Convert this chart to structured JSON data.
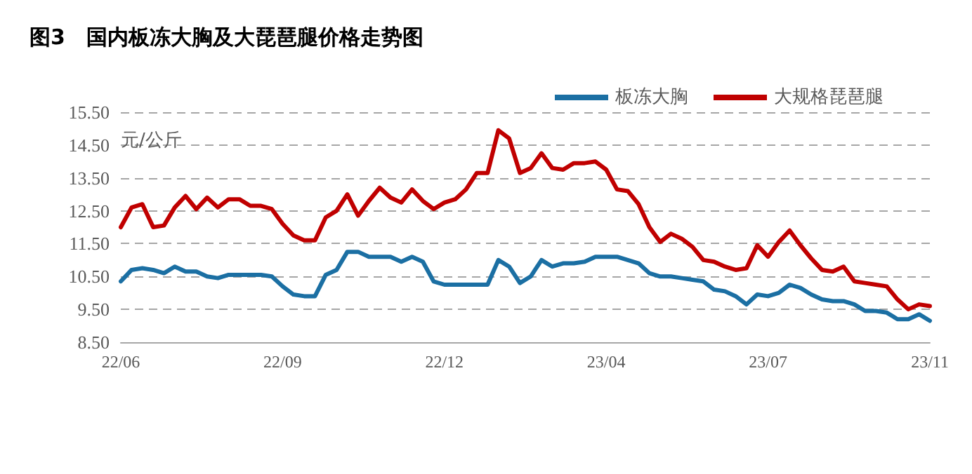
{
  "chart_data": {
    "type": "line",
    "title": "图3　国内板冻大胸及大琵琶腿价格走势图",
    "ylabel": "元/公斤",
    "categories": [
      "22/06",
      null,
      null,
      null,
      null,
      null,
      null,
      null,
      null,
      null,
      null,
      null,
      null,
      null,
      null,
      "22/09",
      null,
      null,
      null,
      null,
      null,
      null,
      null,
      null,
      null,
      null,
      null,
      null,
      null,
      null,
      "22/12",
      null,
      null,
      null,
      null,
      null,
      null,
      null,
      null,
      null,
      null,
      null,
      null,
      null,
      null,
      "23/04",
      null,
      null,
      null,
      null,
      null,
      null,
      null,
      null,
      null,
      null,
      null,
      null,
      null,
      null,
      "23/07",
      null,
      null,
      null,
      null,
      null,
      null,
      null,
      null,
      null,
      null,
      null,
      null,
      null,
      null,
      "23/11"
    ],
    "series": [
      {
        "name": "板冻大胸",
        "color": "#1b6fa3",
        "values": [
          10.35,
          10.7,
          10.75,
          10.7,
          10.6,
          10.8,
          10.65,
          10.65,
          10.5,
          10.45,
          10.55,
          10.55,
          10.55,
          10.55,
          10.5,
          10.2,
          9.95,
          9.9,
          9.9,
          10.55,
          10.7,
          11.25,
          11.25,
          11.1,
          11.1,
          11.1,
          10.95,
          11.1,
          10.95,
          10.35,
          10.25,
          10.25,
          10.25,
          10.25,
          10.25,
          11.0,
          10.8,
          10.3,
          10.5,
          11.0,
          10.8,
          10.9,
          10.9,
          10.95,
          11.1,
          11.1,
          11.1,
          11.0,
          10.9,
          10.6,
          10.5,
          10.5,
          10.45,
          10.4,
          10.35,
          10.1,
          10.05,
          9.9,
          9.65,
          9.95,
          9.9,
          10.0,
          10.25,
          10.15,
          9.95,
          9.8,
          9.75,
          9.75,
          9.65,
          9.45,
          9.45,
          9.4,
          9.2,
          9.2,
          9.35,
          9.15
        ]
      },
      {
        "name": "大规格琵琶腿",
        "color": "#c00000",
        "values": [
          12.0,
          12.6,
          12.7,
          12.0,
          12.05,
          12.6,
          12.95,
          12.55,
          12.9,
          12.6,
          12.85,
          12.85,
          12.65,
          12.65,
          12.55,
          12.1,
          11.75,
          11.6,
          11.6,
          12.3,
          12.5,
          13.0,
          12.35,
          12.8,
          13.2,
          12.9,
          12.75,
          13.15,
          12.8,
          12.55,
          12.75,
          12.85,
          13.15,
          13.65,
          13.65,
          14.95,
          14.7,
          13.65,
          13.8,
          14.25,
          13.8,
          13.75,
          13.95,
          13.95,
          14.0,
          13.75,
          13.15,
          13.1,
          12.7,
          12.0,
          11.55,
          11.8,
          11.65,
          11.4,
          11.0,
          10.95,
          10.8,
          10.7,
          10.75,
          11.45,
          11.1,
          11.55,
          11.9,
          11.45,
          11.05,
          10.7,
          10.65,
          10.8,
          10.35,
          10.3,
          10.25,
          10.2,
          9.8,
          9.5,
          9.65,
          9.6
        ]
      }
    ],
    "ylim": [
      8.5,
      15.5
    ],
    "yticks": [
      {
        "value": 8.5,
        "label": "8.50"
      },
      {
        "value": 9.5,
        "label": "9.50"
      },
      {
        "value": 10.5,
        "label": "10.50"
      },
      {
        "value": 11.5,
        "label": "11.50"
      },
      {
        "value": 12.5,
        "label": "12.50"
      },
      {
        "value": 13.5,
        "label": "13.50"
      },
      {
        "value": 14.5,
        "label": "14.50"
      },
      {
        "value": 15.5,
        "label": "15.50"
      }
    ],
    "grid": "y",
    "legend": "top right",
    "marker": "none",
    "line_style": "solid"
  }
}
